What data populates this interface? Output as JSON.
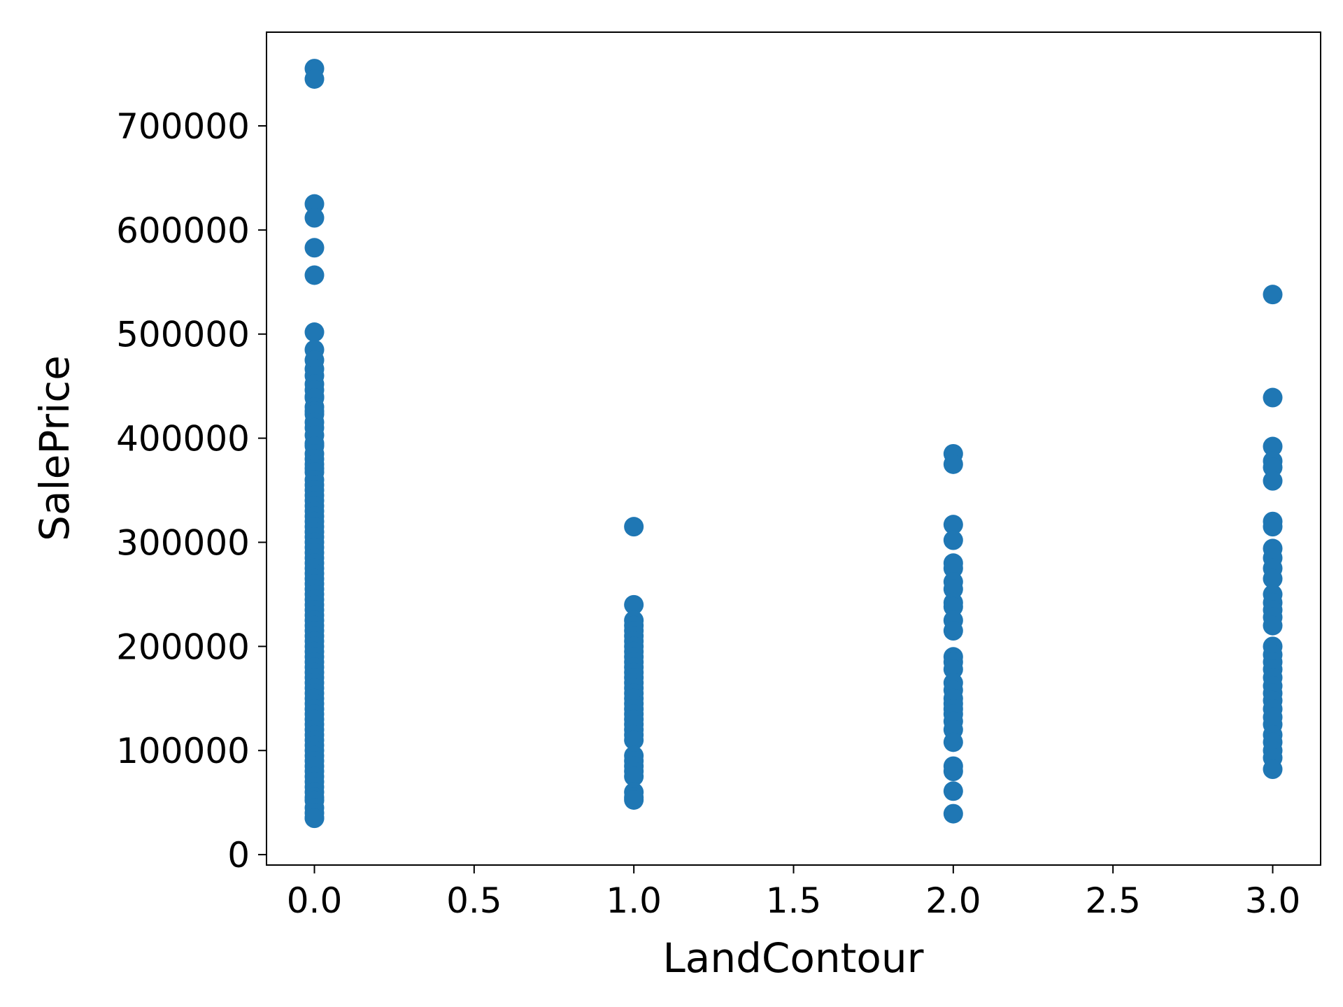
{
  "chart_data": {
    "type": "scatter",
    "title": "",
    "xlabel": "LandContour",
    "ylabel": "SalePrice",
    "xlim": [
      -0.15,
      3.15
    ],
    "ylim": [
      -10000,
      790000
    ],
    "xticks": [
      0.0,
      0.5,
      1.0,
      1.5,
      2.0,
      2.5,
      3.0
    ],
    "xtick_labels": [
      "0.0",
      "0.5",
      "1.0",
      "1.5",
      "2.0",
      "2.5",
      "3.0"
    ],
    "yticks": [
      0,
      100000,
      200000,
      300000,
      400000,
      500000,
      600000,
      700000
    ],
    "ytick_labels": [
      "0",
      "100000",
      "200000",
      "300000",
      "400000",
      "500000",
      "600000",
      "700000"
    ],
    "grid": false,
    "marker_color": "#1f77b4",
    "series": [
      {
        "x_value": 0,
        "values": [
          755000,
          745000,
          625000,
          611657,
          582933,
          556581,
          501837,
          485000,
          475000,
          466500,
          460000,
          451950,
          446261,
          440000,
          438780,
          430000,
          426000,
          423000,
          415298,
          410000,
          402861,
          395000,
          392500,
          385000,
          380000,
          375000,
          370878,
          367294,
          360000,
          355000,
          350000,
          345000,
          340000,
          335000,
          330000,
          325000,
          320000,
          315000,
          310000,
          305000,
          300000,
          295000,
          290000,
          285000,
          280000,
          275000,
          270000,
          265000,
          260000,
          255000,
          250000,
          245000,
          240000,
          235000,
          230000,
          225000,
          220000,
          215000,
          210000,
          205000,
          200000,
          195000,
          190000,
          185000,
          180000,
          175000,
          170000,
          165000,
          160000,
          155000,
          150000,
          145000,
          140000,
          135000,
          130000,
          125000,
          120000,
          115000,
          110000,
          105000,
          100000,
          95000,
          90000,
          85000,
          80000,
          75000,
          70000,
          65000,
          60000,
          55000,
          52000,
          45000,
          40000,
          35311,
          34900
        ]
      },
      {
        "x_value": 1,
        "values": [
          315000,
          240000,
          225000,
          220000,
          215000,
          210000,
          205000,
          200000,
          195000,
          190000,
          185000,
          180000,
          175000,
          170000,
          165000,
          160000,
          155000,
          150000,
          145000,
          140000,
          135000,
          130000,
          125000,
          120000,
          115000,
          110000,
          95000,
          90000,
          85000,
          80000,
          75000,
          60000,
          55000,
          52500
        ]
      },
      {
        "x_value": 2,
        "values": [
          385000,
          375000,
          317000,
          302000,
          280000,
          275000,
          262000,
          255000,
          242000,
          238000,
          225000,
          215000,
          190000,
          185000,
          178000,
          165000,
          158000,
          150000,
          145000,
          140000,
          135000,
          128000,
          120000,
          108000,
          85000,
          80000,
          61000,
          39300
        ]
      },
      {
        "x_value": 3,
        "values": [
          538000,
          439000,
          392000,
          378000,
          372000,
          359000,
          320000,
          315000,
          294000,
          285000,
          275000,
          265000,
          250000,
          242000,
          235000,
          228000,
          220000,
          200000,
          192000,
          185000,
          178000,
          170000,
          162000,
          155000,
          148000,
          140000,
          132000,
          125000,
          115000,
          108000,
          100000,
          93000,
          82000
        ]
      }
    ]
  }
}
